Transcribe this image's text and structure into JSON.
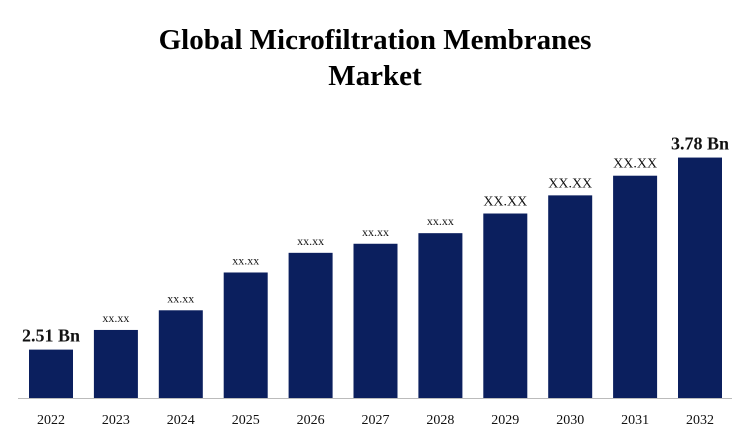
{
  "chart_data": {
    "type": "bar",
    "title": "Global Microfiltration Membranes Market",
    "categories": [
      "2022",
      "2023",
      "2024",
      "2025",
      "2026",
      "2027",
      "2028",
      "2029",
      "2030",
      "2031",
      "2032"
    ],
    "values": [
      2.51,
      2.64,
      2.77,
      3.02,
      3.15,
      3.21,
      3.28,
      3.41,
      3.53,
      3.66,
      3.78
    ],
    "value_labels": [
      "2.51 Bn",
      "xx.xx",
      "xx.xx",
      "xx.xx",
      "xx.xx",
      "xx.xx",
      "xx.xx",
      "XX.XX",
      "XX.XX",
      "XX.XX",
      "3.78 Bn"
    ],
    "color": "#0b1f5e",
    "ylim": [
      2.19,
      3.83
    ]
  }
}
